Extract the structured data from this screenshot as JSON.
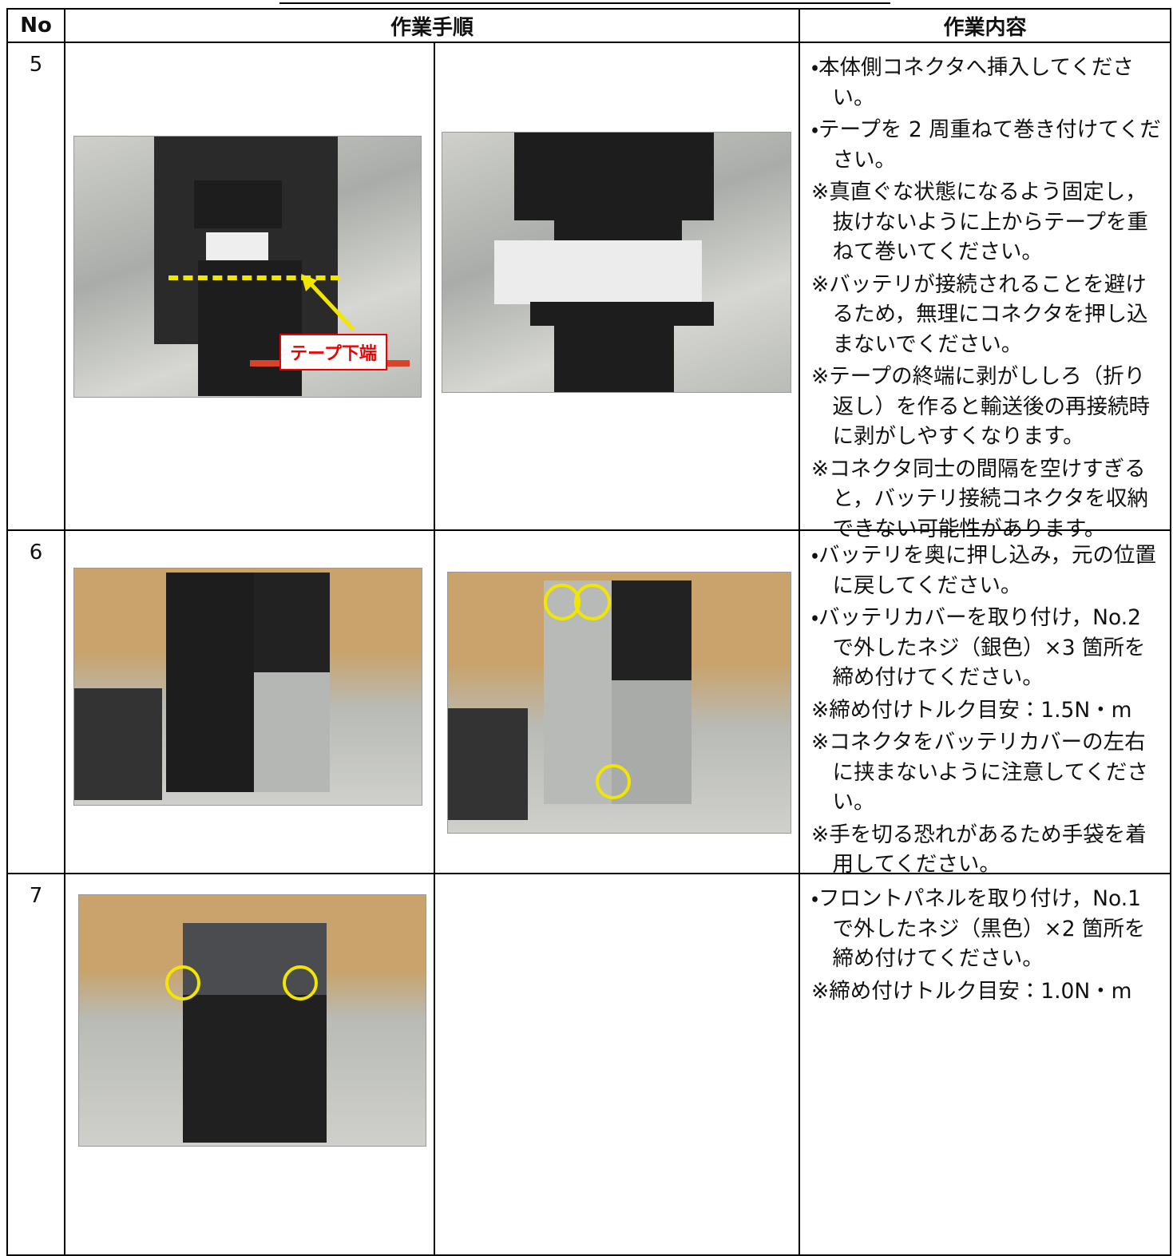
{
  "header": {
    "no": "No",
    "procedure": "作業手順",
    "content": "作業内容"
  },
  "rows": [
    {
      "no": "5",
      "photo_label": "テープ下端",
      "items": [
        "・本体側コネクタへ挿入してください。",
        "・テープを 2 周重ねて巻き付けてください。",
        "※真直ぐな状態になるよう固定し，抜けないように上からテープを重ねて巻いてください。",
        "※バッテリが接続されることを避けるため，無理にコネクタを押し込まないでください。",
        "※テープの終端に剥がししろ（折り返し）を作ると輸送後の再接続時に剥がしやすくなります。",
        "※コネクタ同士の間隔を空けすぎると，バッテリ接続コネクタを収納できない可能性があります。"
      ]
    },
    {
      "no": "6",
      "items": [
        "・バッテリを奥に押し込み，元の位置に戻してください。",
        "・バッテリカバーを取り付け，No.2 で外したネジ（銀色）×3 箇所を締め付けてください。",
        "※締め付けトルク目安：1.5N・m",
        "※コネクタをバッテリカバーの左右に挟まないように注意してください。",
        "※手を切る恐れがあるため手袋を着用してください。"
      ]
    },
    {
      "no": "7",
      "items": [
        "・フロントパネルを取り付け，No.1 で外したネジ（黒色）×2 箇所を締め付けてください。",
        "※締め付けトルク目安：1.0N・m"
      ]
    }
  ]
}
